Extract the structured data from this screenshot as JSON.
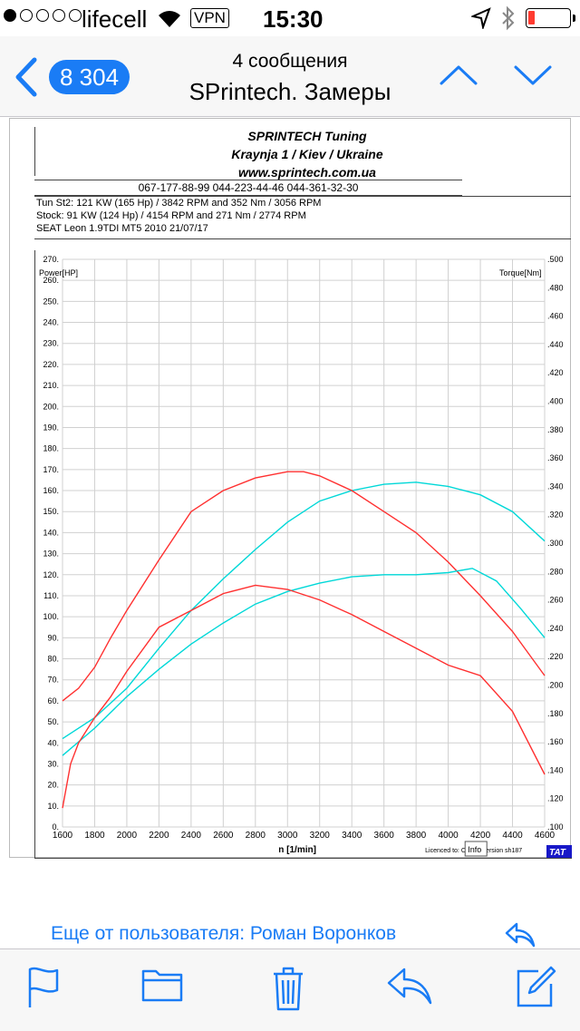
{
  "status": {
    "carrier": "lifecell",
    "signal_dots": [
      true,
      false,
      false,
      false,
      false
    ],
    "vpn": "VPN",
    "time": "15:30",
    "battery_color": "#ff3b30"
  },
  "nav": {
    "back_count": "8 304",
    "subtitle": "4 сообщения",
    "title": "SPrintech. Замеры",
    "accent": "#1a7cf5"
  },
  "sheet": {
    "line1": "SPRINTECH Tuning",
    "line2": "Kraynja 1 / Kiev / Ukraine",
    "line3": "www.sprintech.com.ua",
    "phones": "067-177-88-99 044-223-44-46 044-361-32-30",
    "info": [
      "Tun St2:  121 KW (165 Hp) /  3842 RPM  and   352 Nm /  3056 RPM",
      "Stock:  91 KW (124 Hp) /  4154 RPM  and   271 Nm /  2774 RPM",
      "SEAT Leon  1.9TDI  MT5 2010 21/07/17"
    ],
    "licence": "Licenced to: Oleksii   Version sh187",
    "info_button": "Info",
    "brand_corner": "TAT"
  },
  "chart_data": {
    "type": "line",
    "xlabel": "n  [1/min]",
    "ylabel_left": "Power[HP]",
    "ylabel_right": "Torque[Nm]",
    "xlim": [
      1600,
      4600
    ],
    "ylim_left": [
      0,
      270
    ],
    "ylim_right": [
      100,
      500
    ],
    "x_ticks": [
      1600,
      1800,
      2000,
      2200,
      2400,
      2600,
      2800,
      3000,
      3200,
      3400,
      3600,
      3800,
      4000,
      4200,
      4400,
      4600
    ],
    "y_ticks_left": [
      "0.",
      "10.",
      "20.",
      "30.",
      "40.",
      "50.",
      "60.",
      "70.",
      "80.",
      "90.",
      "100.",
      "110.",
      "120.",
      "130.",
      "140.",
      "150.",
      "160.",
      "170.",
      "180.",
      "190.",
      "200.",
      "210.",
      "220.",
      "230.",
      "240.",
      "250.",
      "260.",
      "270."
    ],
    "y_ticks_right": [
      ".100",
      ".120",
      ".140",
      ".160",
      ".180",
      ".200",
      ".220",
      ".240",
      ".260",
      ".280",
      ".300",
      ".320",
      ".340",
      ".360",
      ".380",
      ".400",
      ".420",
      ".440",
      ".460",
      ".480",
      ".500"
    ],
    "grid": true,
    "series": [
      {
        "color": "#00d8d8",
        "axis": "left",
        "x": [
          1600,
          1800,
          2000,
          2200,
          2400,
          2600,
          2800,
          3000,
          3200,
          3400,
          3600,
          3800,
          4000,
          4200,
          4400,
          4600
        ],
        "y": [
          42,
          52,
          66,
          85,
          103,
          118,
          132,
          145,
          155,
          160,
          163,
          164,
          162,
          158,
          150,
          136
        ]
      },
      {
        "color": "#ff3030",
        "axis": "left",
        "x": [
          1600,
          1700,
          1800,
          1900,
          2000,
          2200,
          2400,
          2600,
          2800,
          3000,
          3100,
          3200,
          3400,
          3600,
          3800,
          4000,
          4200,
          4400,
          4600
        ],
        "y": [
          60,
          66,
          76,
          90,
          103,
          127,
          150,
          160,
          166,
          169,
          169,
          167,
          160,
          150,
          140,
          126,
          110,
          93,
          72
        ]
      },
      {
        "color": "#00d8d8",
        "axis": "left",
        "x": [
          1600,
          1800,
          2000,
          2200,
          2400,
          2600,
          2800,
          3000,
          3200,
          3400,
          3600,
          3800,
          4000,
          4150,
          4300,
          4450,
          4600
        ],
        "y": [
          34,
          47,
          62,
          75,
          87,
          97,
          106,
          112,
          116,
          119,
          120,
          120,
          121,
          123,
          117,
          104,
          90
        ]
      },
      {
        "color": "#ff3030",
        "axis": "left",
        "x": [
          1600,
          1650,
          1700,
          1800,
          1900,
          2000,
          2200,
          2400,
          2600,
          2800,
          3000,
          3200,
          3400,
          3600,
          3800,
          4000,
          4200,
          4400,
          4600
        ],
        "y": [
          9,
          30,
          40,
          52,
          62,
          74,
          95,
          103,
          111,
          115,
          113,
          108,
          101,
          93,
          85,
          77,
          72,
          55,
          25
        ]
      }
    ]
  },
  "footer": {
    "more_link": "Еще от пользователя: Роман Воронков"
  },
  "toolbar": {
    "items": [
      "flag",
      "folder",
      "trash",
      "reply",
      "compose"
    ]
  }
}
